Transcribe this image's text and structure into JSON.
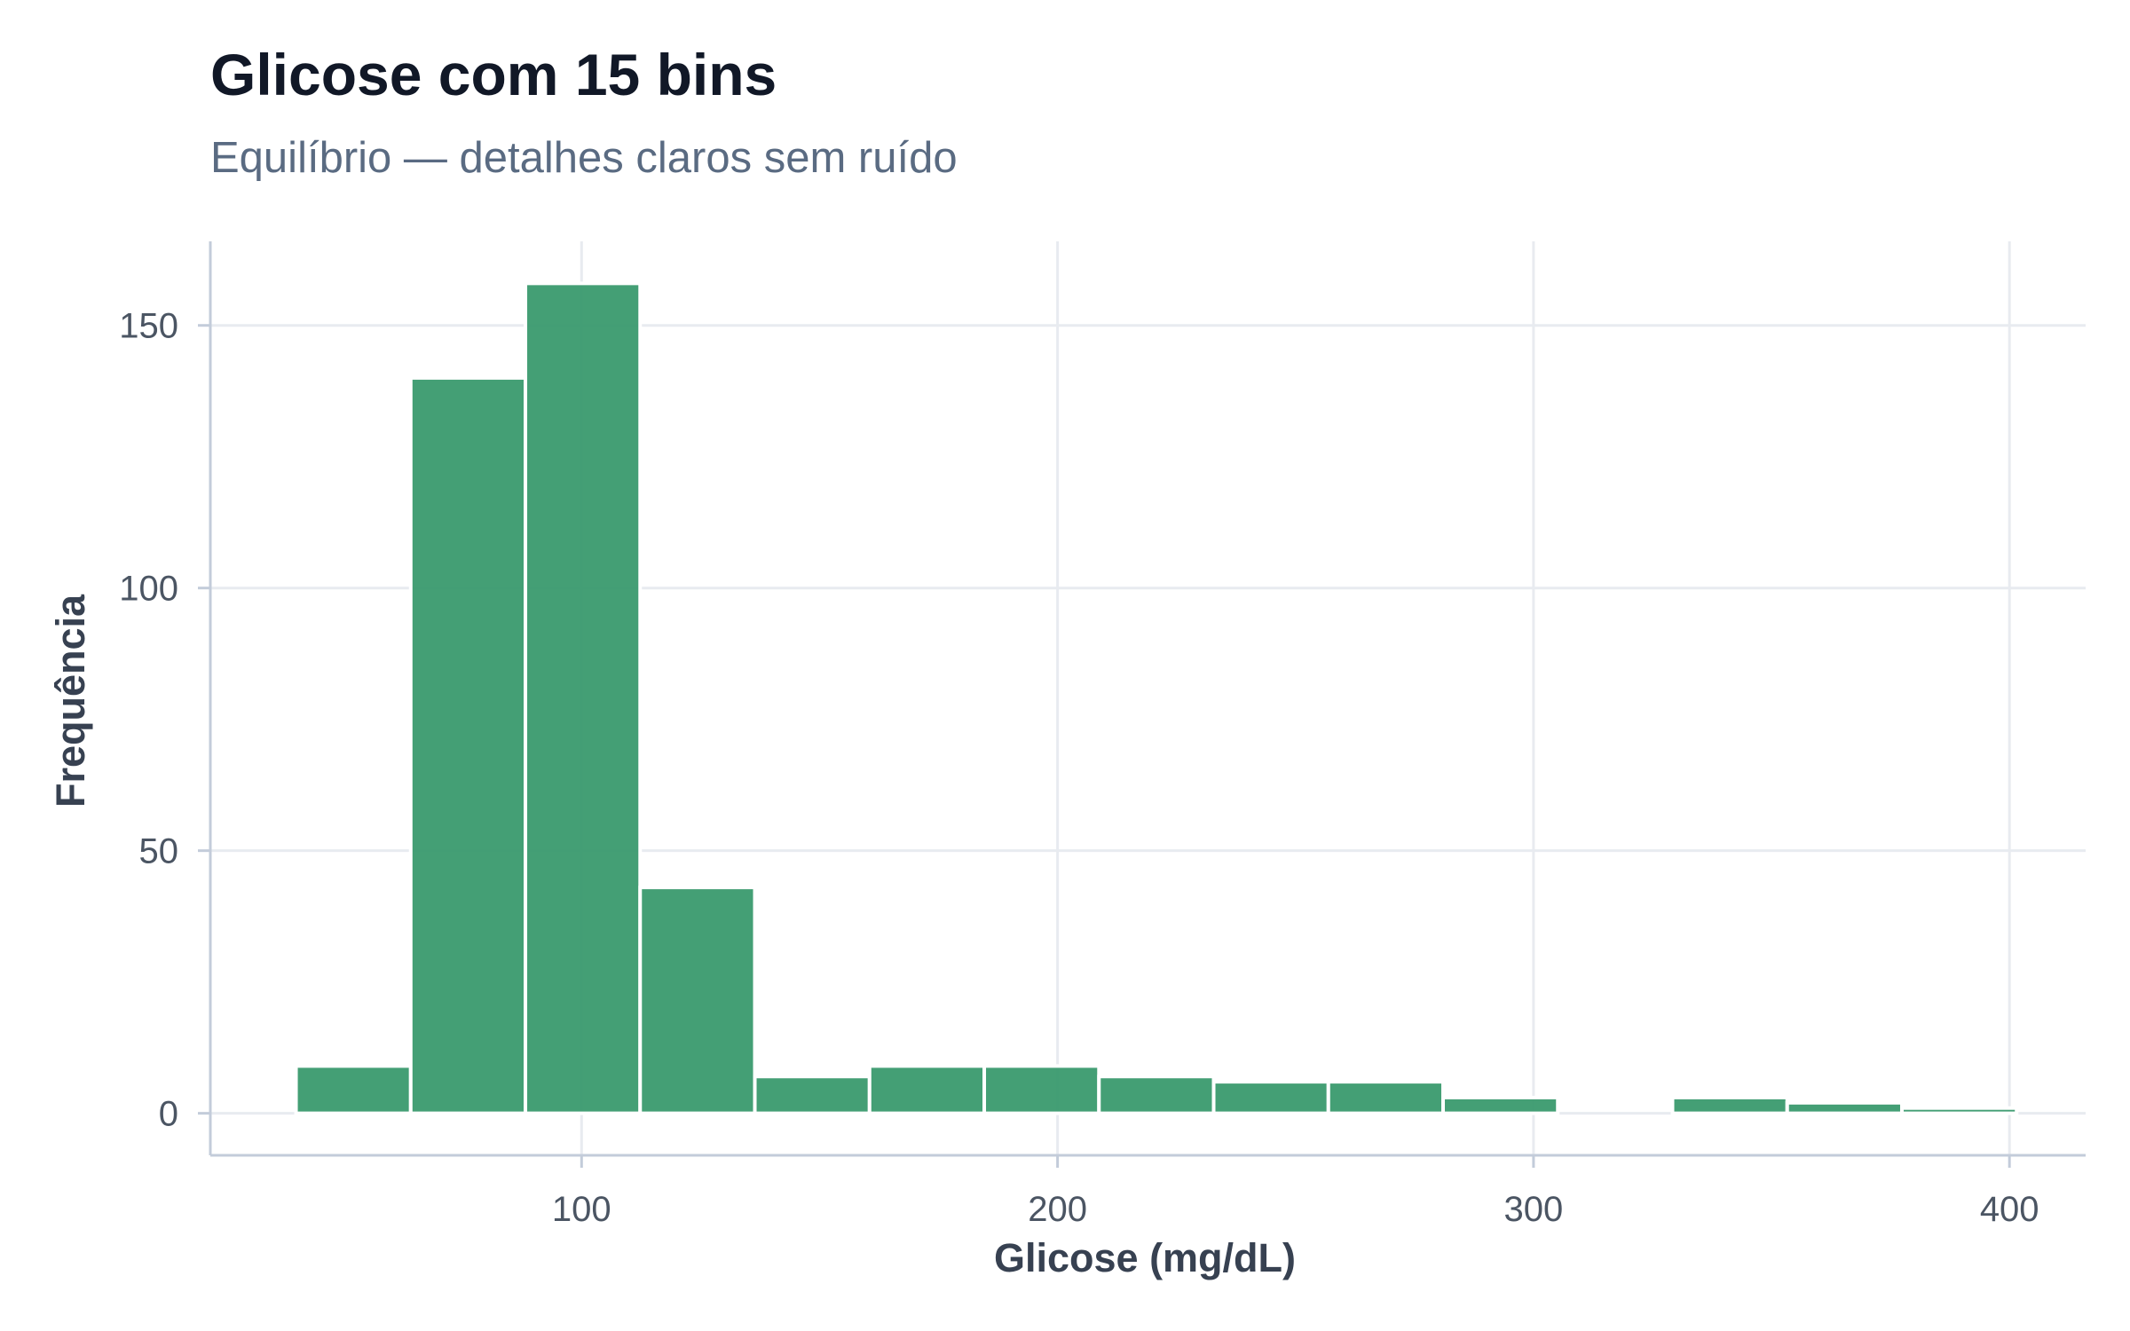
{
  "chart_data": {
    "type": "bar",
    "title": "Glicose com 15 bins",
    "subtitle": "Equilíbrio — detalhes claros sem ruído",
    "xlabel": "Glicose (mg/dL)",
    "ylabel": "Frequência",
    "xlim": [
      22,
      416
    ],
    "ylim": [
      -8,
      166
    ],
    "x_ticks": [
      100,
      200,
      300,
      400
    ],
    "y_ticks": [
      0,
      50,
      100,
      150
    ],
    "bin_edges": [
      40,
      64.1,
      88.2,
      112.3,
      136.4,
      160.5,
      184.6,
      208.7,
      232.8,
      256.9,
      281.0,
      305.1,
      329.2,
      353.3,
      377.4,
      401.5
    ],
    "values": [
      9,
      140,
      158,
      43,
      7,
      9,
      9,
      7,
      6,
      6,
      3,
      0,
      3,
      2,
      1
    ],
    "bar_color": "#3a9a6e",
    "grid": true,
    "legend": "none"
  }
}
